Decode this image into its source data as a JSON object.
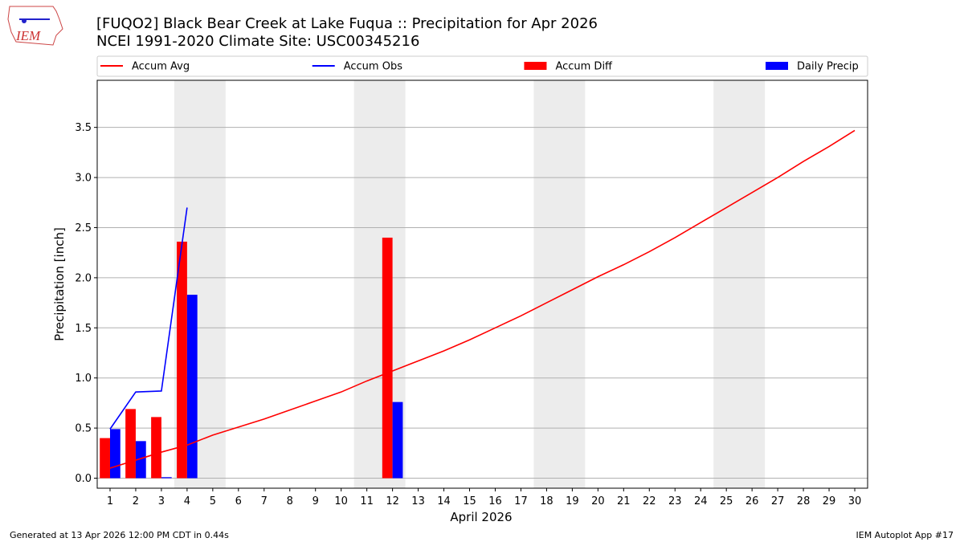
{
  "header": {
    "logo_text": "IEM"
  },
  "chart_data": {
    "type": "bar-line",
    "title": "[FUQO2] Black Bear Creek at Lake Fuqua :: Precipitation for Apr 2026",
    "subtitle": "NCEI 1991-2020 Climate Site: USC00345216",
    "x_label": "April 2026",
    "y_label": "Precipitation [inch]",
    "x": [
      1,
      2,
      3,
      4,
      5,
      6,
      7,
      8,
      9,
      10,
      11,
      12,
      13,
      14,
      15,
      16,
      17,
      18,
      19,
      20,
      21,
      22,
      23,
      24,
      25,
      26,
      27,
      28,
      29,
      30
    ],
    "xlim": [
      0.5,
      30.5
    ],
    "xticks": [
      1,
      2,
      3,
      4,
      5,
      6,
      7,
      8,
      9,
      10,
      11,
      12,
      13,
      14,
      15,
      16,
      17,
      18,
      19,
      20,
      21,
      22,
      23,
      24,
      25,
      26,
      27,
      28,
      29,
      30
    ],
    "ylim": [
      -0.1,
      3.97
    ],
    "yticks": [
      {
        "value": 0,
        "label": "0.0"
      },
      0.5,
      {
        "value": 1,
        "label": "1.0"
      },
      1.5,
      {
        "value": 2,
        "label": "2.0"
      },
      2.5,
      {
        "value": 3,
        "label": "3.0"
      },
      3.5
    ],
    "grid": true,
    "shaded_spans": [
      [
        3.5,
        5.5
      ],
      [
        10.5,
        12.5
      ],
      [
        17.5,
        19.5
      ],
      [
        24.5,
        26.5
      ]
    ],
    "shade_color": "#ececec",
    "legend_position": "top",
    "series": [
      {
        "name": "Accum Avg",
        "kind": "line",
        "color": "#ff0000",
        "values": [
          0.1,
          0.18,
          0.26,
          0.33,
          0.43,
          0.51,
          0.59,
          0.68,
          0.77,
          0.86,
          0.97,
          1.07,
          1.17,
          1.27,
          1.38,
          1.5,
          1.62,
          1.75,
          1.88,
          2.01,
          2.13,
          2.26,
          2.4,
          2.55,
          2.7,
          2.85,
          3.0,
          3.16,
          3.31,
          3.47
        ]
      },
      {
        "name": "Accum Obs",
        "kind": "line",
        "color": "#0000ff",
        "values": [
          0.49,
          0.86,
          0.87,
          2.7,
          null,
          null,
          null,
          null,
          null,
          null,
          null,
          null,
          null,
          null,
          null,
          null,
          null,
          null,
          null,
          null,
          null,
          null,
          null,
          null,
          null,
          null,
          null,
          null,
          null,
          null
        ]
      },
      {
        "name": "Accum Diff",
        "kind": "bar",
        "color": "#ff0000",
        "values": [
          0.4,
          0.69,
          0.61,
          2.36,
          null,
          null,
          null,
          null,
          null,
          null,
          null,
          2.4,
          null,
          null,
          null,
          null,
          null,
          null,
          null,
          null,
          null,
          null,
          null,
          null,
          null,
          null,
          null,
          null,
          null,
          null
        ]
      },
      {
        "name": "Daily Precip",
        "kind": "bar",
        "color": "#0000ff",
        "values": [
          0.49,
          0.37,
          0.01,
          1.83,
          null,
          null,
          null,
          null,
          null,
          null,
          null,
          0.76,
          null,
          null,
          null,
          null,
          null,
          null,
          null,
          null,
          null,
          null,
          null,
          null,
          null,
          null,
          null,
          null,
          null,
          null
        ]
      }
    ]
  },
  "footer": {
    "left": "Generated at 13 Apr 2026 12:00 PM CDT in 0.44s",
    "right": "IEM Autoplot App #17"
  }
}
